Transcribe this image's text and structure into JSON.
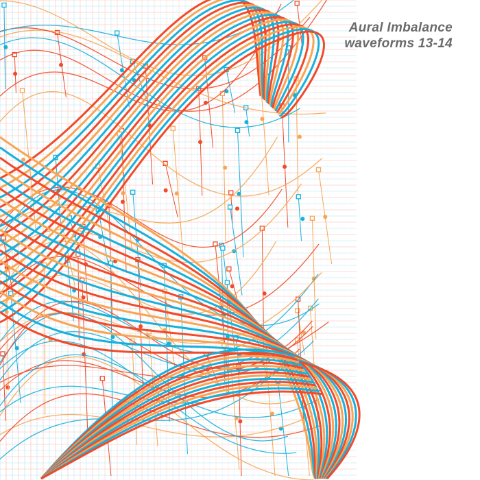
{
  "album": {
    "artist": "Aural Imbalance",
    "title": "waveforms 13-14"
  },
  "colors": {
    "red": "#f04a2a",
    "orange": "#f7a555",
    "cyan": "#17b0dc",
    "grid_red": "#f6c9c0",
    "grid_cyan": "#bfe6f2",
    "text": "#6b6b6b"
  }
}
